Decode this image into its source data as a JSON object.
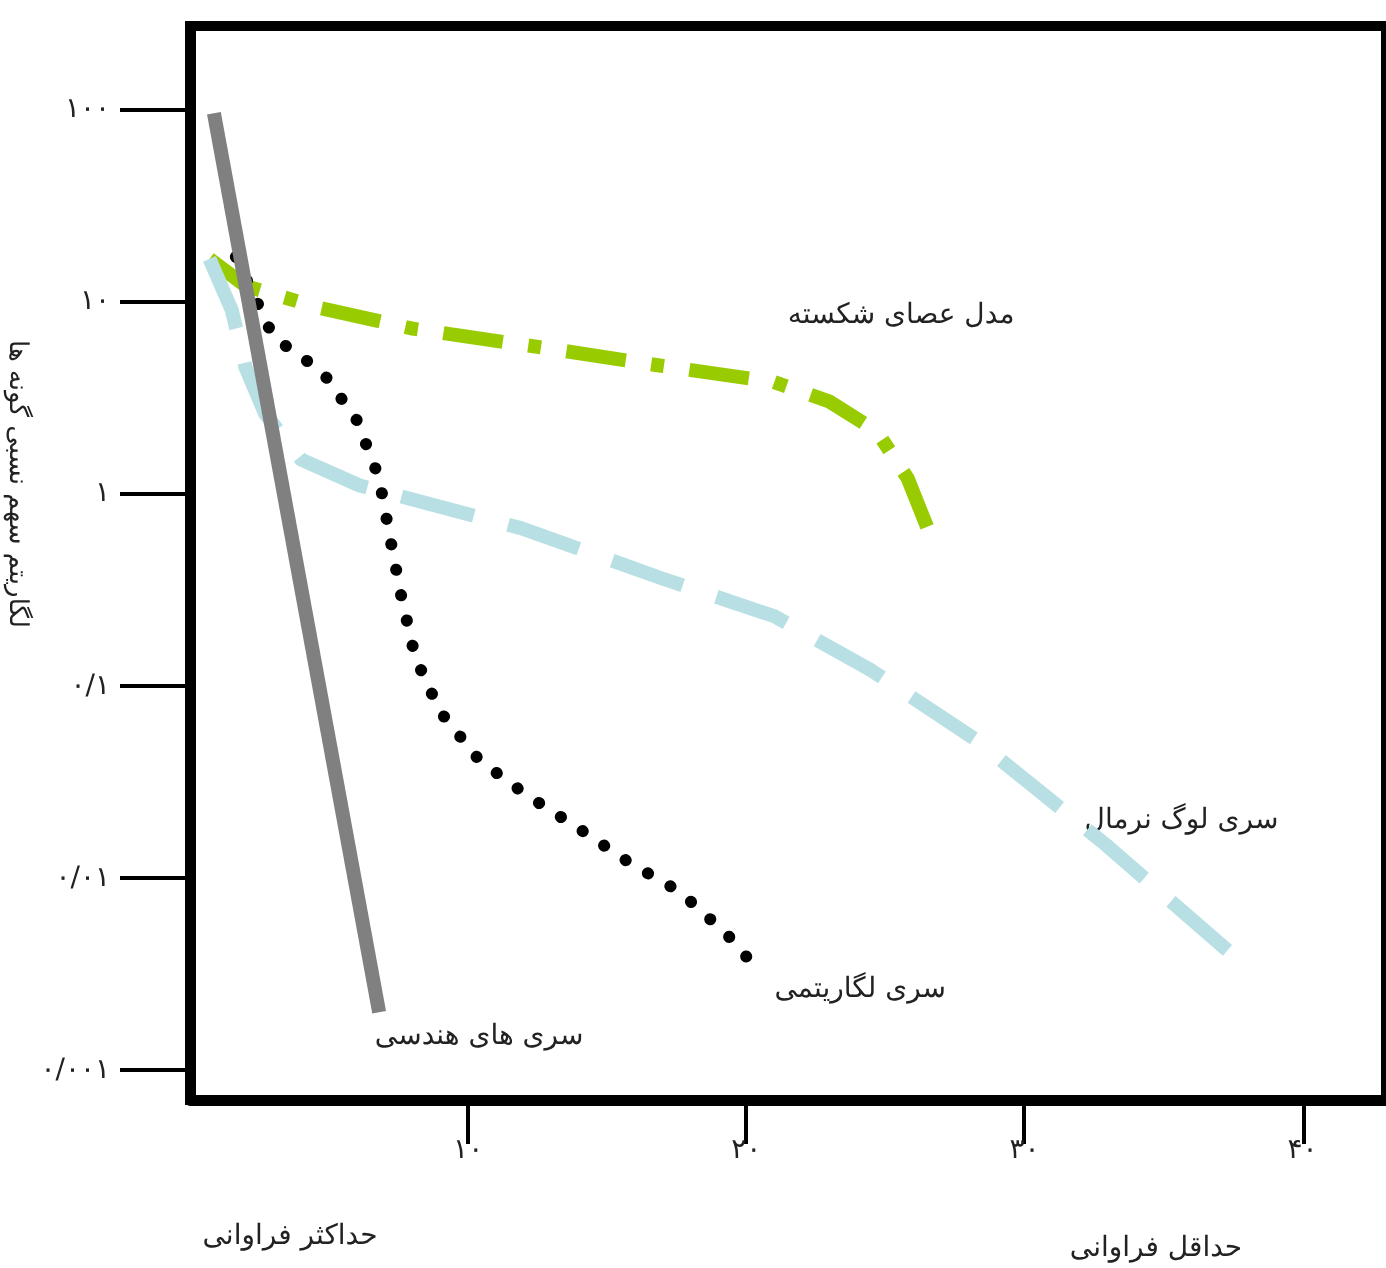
{
  "chart_data": {
    "type": "line",
    "ylabel": "لگاریتم سهم نسبی گونه ها",
    "annotations": [
      "حداکثر فراوانی",
      "حداقل فراوانی"
    ],
    "log": "y",
    "grid": false,
    "legend": false,
    "marker": "none",
    "xlim": [
      0,
      43
    ],
    "xticks": [
      {
        "value": 10,
        "label": "۱۰"
      },
      {
        "value": 20,
        "label": "۲۰"
      },
      {
        "value": 30,
        "label": "۳۰"
      },
      {
        "value": 40,
        "label": "۴۰"
      }
    ],
    "ylim": [
      0.0007,
      270
    ],
    "yticks": [
      {
        "value": 0.001,
        "label": "۰/۰۰۱"
      },
      {
        "value": 0.01,
        "label": "۰/۰۱"
      },
      {
        "value": 0.1,
        "label": "۰/۱"
      },
      {
        "value": 1,
        "label": "۱"
      },
      {
        "value": 10,
        "label": "۱۰"
      },
      {
        "value": 100,
        "label": "۱۰۰"
      }
    ],
    "series": [
      {
        "name": "مدل عصای شکسته",
        "color": "#99cc00",
        "line_style": "dashdot",
        "x": [
          0.7,
          2,
          4.7,
          8,
          12.8,
          17,
          21,
          23,
          24.7,
          25.8,
          26.5
        ],
        "values": [
          16.6,
          12,
          9.2,
          7.2,
          5.7,
          4.6,
          3.8,
          3.0,
          2.1,
          1.2,
          0.67
        ]
      },
      {
        "name": "سری لوگ نرمال",
        "color": "#b8e0e4",
        "line_style": "dashed",
        "x": [
          0.7,
          1.5,
          2,
          2.7,
          4,
          6.1,
          11.9,
          17,
          21,
          24.5,
          28.2,
          32.9,
          37.3
        ],
        "values": [
          16.6,
          9,
          4.5,
          2.6,
          1.5,
          1.1,
          0.66,
          0.36,
          0.23,
          0.12,
          0.053,
          0.015,
          0.0042
        ]
      },
      {
        "name": "سری لگاریتمی",
        "color": "#000000",
        "line_style": "dotted",
        "x": [
          1.65,
          3.0,
          4.75,
          6.0,
          6.8,
          7.2,
          7.6,
          8.1,
          9.0,
          10.4,
          12.1,
          14.0,
          15.8,
          17.6,
          19.3,
          20.0
        ],
        "values": [
          17,
          6.5,
          4.3,
          2.4,
          1.2,
          0.58,
          0.29,
          0.14,
          0.073,
          0.041,
          0.027,
          0.018,
          0.012,
          0.0085,
          0.0051,
          0.0039
        ]
      },
      {
        "name": "سری های هندسی",
        "color": "#808080",
        "line_style": "solid",
        "x": [
          0.86,
          6.8
        ],
        "values": [
          95,
          0.002
        ]
      }
    ]
  }
}
